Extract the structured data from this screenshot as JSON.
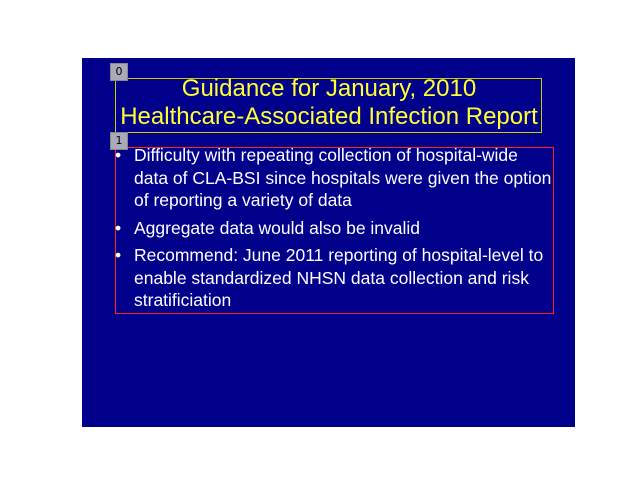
{
  "slide": {
    "title_line1": "Guidance for January, 2010",
    "title_line2": "Healthcare-Associated Infection Report",
    "bullet_symbol": "•",
    "bullets": [
      "Difficulty with repeating collection of hospital-wide data of CLA-BSI since hospitals were given the option of reporting a variety of data",
      "Aggregate data would also be invalid",
      "Recommend: June 2011 reporting of hospital-level to enable standardized NHSN data collection and risk stratificiation"
    ]
  },
  "regions": [
    {
      "label": "0",
      "kind": "title"
    },
    {
      "label": "1",
      "kind": "body"
    }
  ],
  "colors": {
    "slide_background": "#00008b",
    "title_text": "#ffff33",
    "body_text": "#ffffff",
    "title_region_border": "#cccc00",
    "body_region_border": "#ff2222",
    "tag_background": "#a9a9b8"
  }
}
